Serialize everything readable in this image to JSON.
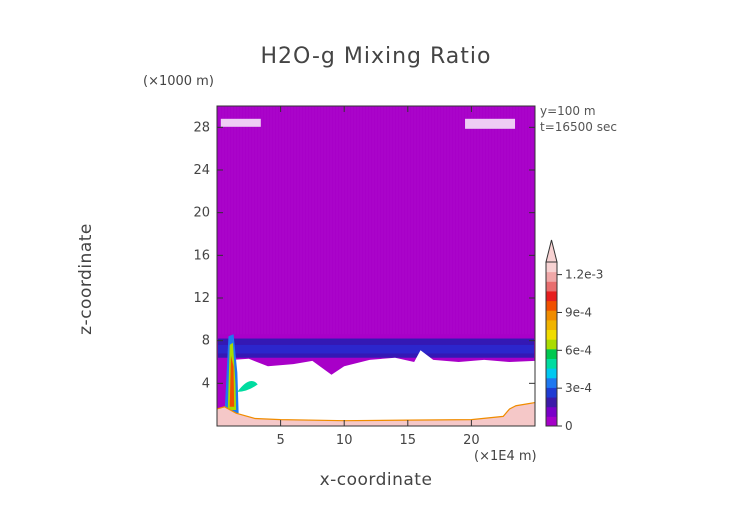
{
  "chart_data": {
    "type": "heatmap",
    "title": "H2O-g Mixing Ratio",
    "xlabel": "x-coordinate",
    "ylabel": "z-coordinate",
    "x_unit": "(×1E4 m)",
    "z_unit": "(×1000 m)",
    "annotations": [
      "y=100 m",
      "t=16500 sec"
    ],
    "xlim": [
      0,
      25
    ],
    "ylim": [
      0,
      30
    ],
    "x_ticks": [
      5,
      10,
      15,
      20
    ],
    "y_ticks": [
      4,
      8,
      12,
      16,
      20,
      24,
      28
    ],
    "colorbar": {
      "min": 0,
      "max": 0.0013,
      "tick_values": [
        0,
        0.0003,
        0.0006,
        0.0009,
        0.0012
      ],
      "tick_labels": [
        "0",
        "3e-4",
        "6e-4",
        "9e-4",
        "1.2e-3"
      ],
      "colors": [
        "#a500c8",
        "#7a00c8",
        "#3c1aa8",
        "#1f3cd2",
        "#1e78f0",
        "#00c8f0",
        "#00dca0",
        "#00c850",
        "#aadc00",
        "#f0dc00",
        "#f0b400",
        "#f08c00",
        "#f05000",
        "#e61e1e",
        "#e86e6e",
        "#f0a8a8",
        "#f7d2d2"
      ],
      "extend": "max"
    },
    "regions": [
      {
        "label": "background",
        "z_range": [
          9,
          30
        ],
        "value": 0
      },
      {
        "label": "moist layer",
        "z_range": [
          6.5,
          8
        ],
        "value": 0.00015
      },
      {
        "label": "white (undefined) region",
        "z_range": [
          0.5,
          6
        ],
        "value": null
      },
      {
        "label": "near-surface moist layer",
        "z_range": [
          0,
          0.5
        ],
        "value": 0.0012
      }
    ]
  }
}
